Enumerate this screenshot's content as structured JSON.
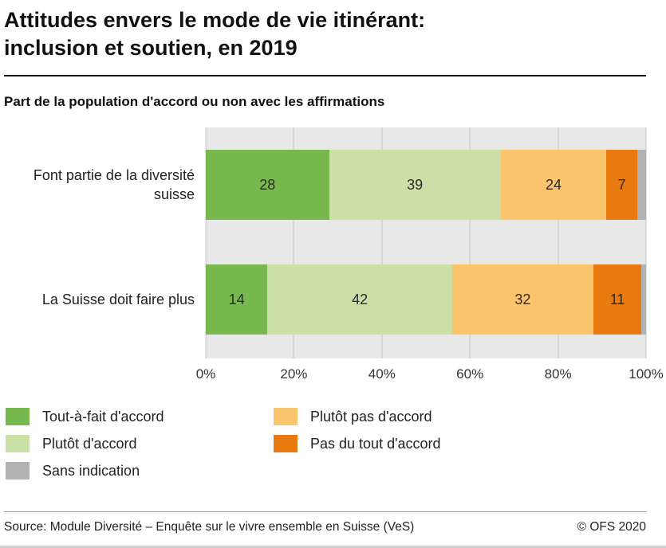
{
  "title_line1": "Attitudes envers le mode de vie itinérant:",
  "title_line2": "inclusion et soutien, en 2019",
  "subtitle": "Part de la population d'accord ou non avec les affirmations",
  "chart_data": {
    "type": "bar",
    "orientation": "horizontal",
    "stacked": true,
    "categories": [
      "Font partie de la diversité suisse",
      "La Suisse doit faire plus"
    ],
    "series": [
      {
        "name": "Tout-à-fait d'accord",
        "color": "#77b94e",
        "values": [
          28,
          14
        ],
        "show_label": true
      },
      {
        "name": "Plutôt d'accord",
        "color": "#cbe0a6",
        "values": [
          39,
          42
        ],
        "show_label": true
      },
      {
        "name": "Plutôt pas d'accord",
        "color": "#fbc56d",
        "values": [
          24,
          32
        ],
        "show_label": true
      },
      {
        "name": "Pas du tout d'accord",
        "color": "#e87a10",
        "values": [
          7,
          11
        ],
        "show_label": true
      },
      {
        "name": "Sans indication",
        "color": "#b2b2b2",
        "values": [
          2,
          1
        ],
        "show_label": false
      }
    ],
    "xlim": [
      0,
      100
    ],
    "x_ticks": [
      "0%",
      "20%",
      "40%",
      "60%",
      "80%",
      "100%"
    ],
    "grid": true,
    "plot_background": "#e8e8e8",
    "gridline_color": "#c4c4c4",
    "legend_position": "bottom"
  },
  "legend": [
    {
      "label": "Tout-à-fait d'accord",
      "color": "#77b94e"
    },
    {
      "label": "Plutôt d'accord",
      "color": "#cbe0a6"
    },
    {
      "label": "Sans indication",
      "color": "#b2b2b2"
    },
    {
      "label": "Plutôt pas d'accord",
      "color": "#fbc56d"
    },
    {
      "label": "Pas du tout d'accord",
      "color": "#e87a10"
    }
  ],
  "footer": {
    "source": "Source: Module Diversité – Enquête sur le vivre ensemble en Suisse (VeS)",
    "copyright": "© OFS 2020"
  }
}
